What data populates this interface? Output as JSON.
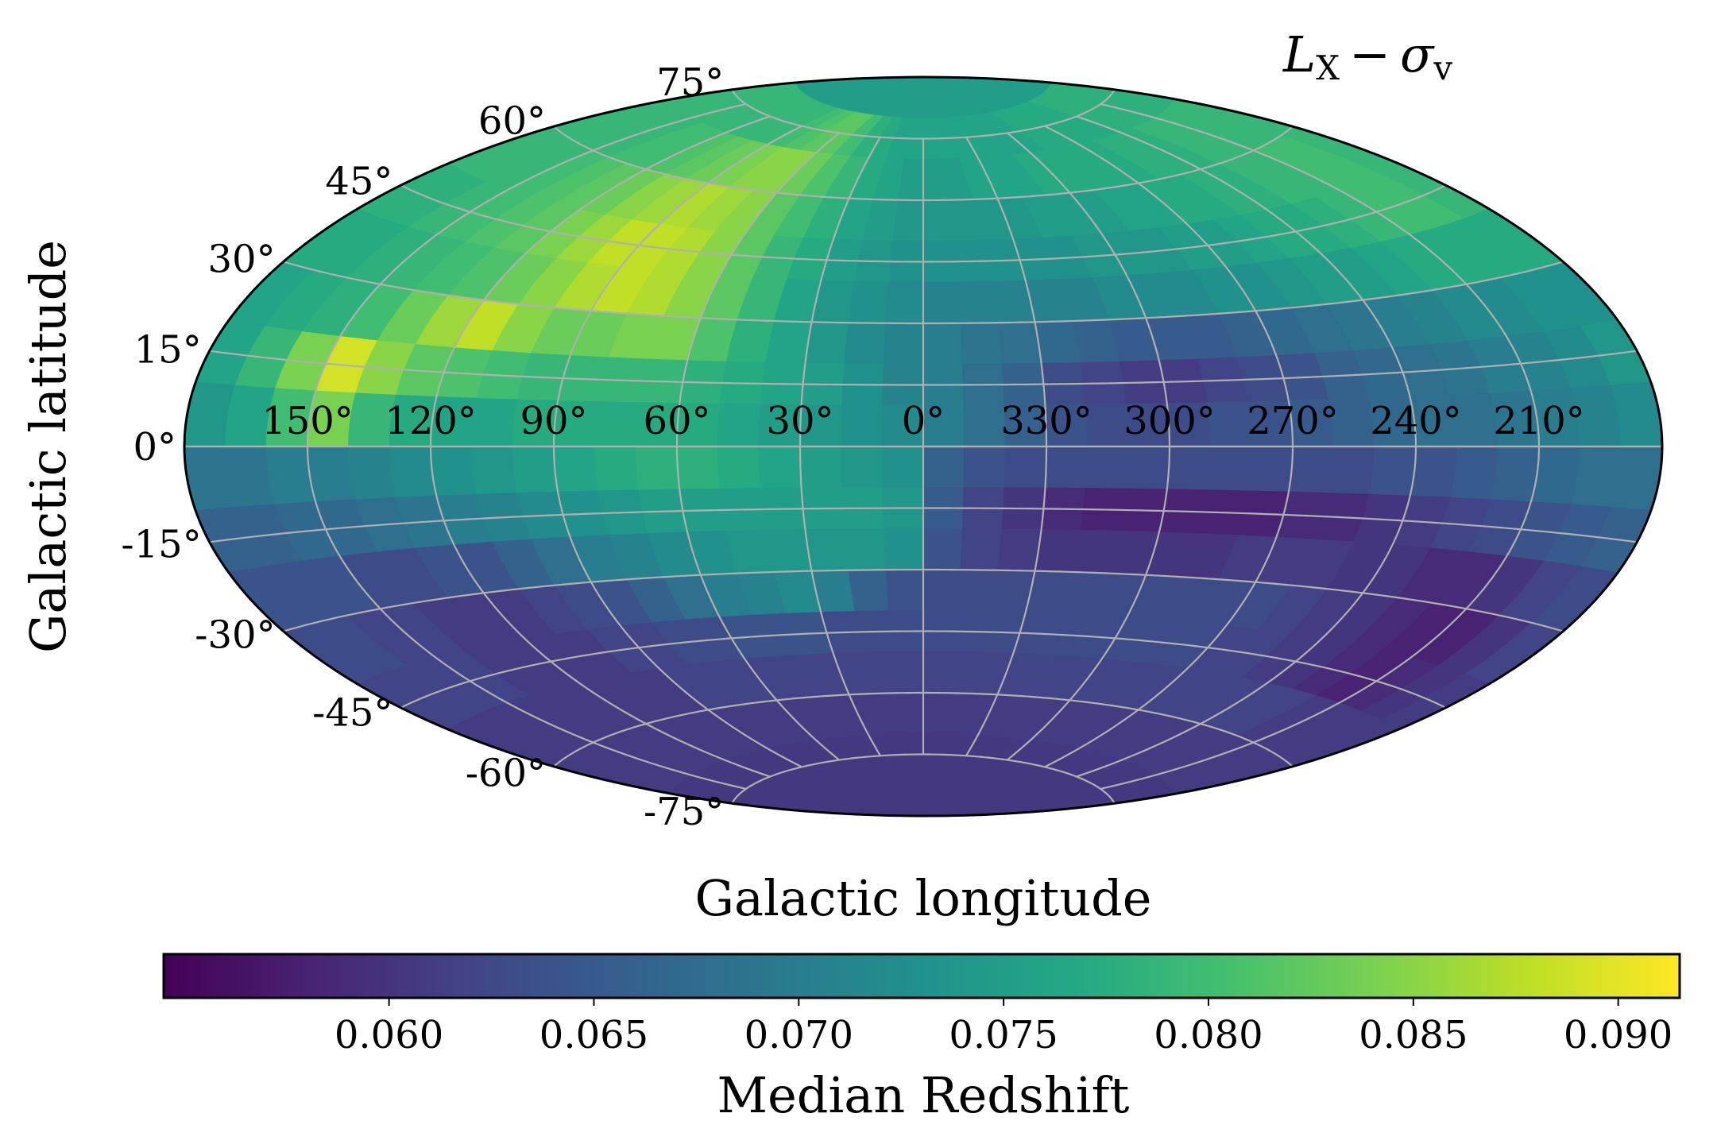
{
  "chart_data": {
    "type": "heatmap",
    "projection": "aitoff",
    "title": "L_X − σ_v",
    "title_main": "L",
    "title_sub1": "X",
    "title_op": "−",
    "title_sym": "σ",
    "title_sub2": "v",
    "xlabel": "Galactic longitude",
    "ylabel": "Galactic latitude",
    "colorbar_label": "Median Redshift",
    "colormap": "viridis",
    "clim": [
      0.0545,
      0.0915
    ],
    "colorbar_ticks": [
      0.06,
      0.065,
      0.07,
      0.075,
      0.08,
      0.085,
      0.09
    ],
    "colorbar_tick_labels": [
      "0.060",
      "0.065",
      "0.070",
      "0.075",
      "0.080",
      "0.085",
      "0.090"
    ],
    "lon_ticks": [
      150,
      120,
      90,
      60,
      30,
      0,
      -30,
      -60,
      -90,
      -120,
      -150
    ],
    "lon_tick_labels": [
      "150°",
      "120°",
      "90°",
      "60°",
      "30°",
      "0°",
      "330°",
      "300°",
      "270°",
      "240°",
      "210°"
    ],
    "lat_ticks": [
      75,
      60,
      45,
      30,
      15,
      0,
      -15,
      -30,
      -45,
      -60,
      -75
    ],
    "lat_tick_labels": [
      "75°",
      "60°",
      "45°",
      "30°",
      "15°",
      "0°",
      "-15°",
      "-30°",
      "-45°",
      "-60°",
      "-75°"
    ],
    "grid": true,
    "map_grid": {
      "lon_step_deg": 10,
      "lat_step_deg": 10,
      "lon_centers": [
        175,
        165,
        155,
        145,
        135,
        125,
        115,
        105,
        95,
        85,
        75,
        65,
        55,
        45,
        35,
        25,
        15,
        5,
        -5,
        -15,
        -25,
        -35,
        -45,
        -55,
        -65,
        -75,
        -85,
        -95,
        -105,
        -115,
        -125,
        -135,
        -145,
        -155,
        -165,
        -175
      ],
      "lat_centers": [
        85,
        75,
        65,
        55,
        45,
        35,
        25,
        15,
        5,
        -5,
        -15,
        -25,
        -35,
        -45,
        -55,
        -65,
        -75,
        -85
      ],
      "median_redshift": [
        [
          0.075,
          0.075,
          0.075,
          0.075,
          0.075,
          0.075,
          0.075,
          0.075,
          0.075,
          0.075,
          0.075,
          0.075,
          0.075,
          0.075,
          0.075,
          0.075,
          0.075,
          0.075,
          0.075,
          0.075,
          0.075,
          0.075,
          0.075,
          0.075,
          0.075,
          0.075,
          0.075,
          0.075,
          0.075,
          0.075,
          0.075,
          0.075,
          0.075,
          0.075,
          0.075,
          0.075
        ],
        [
          0.079,
          0.079,
          0.079,
          0.079,
          0.079,
          0.079,
          0.079,
          0.079,
          0.079,
          0.08,
          0.081,
          0.082,
          0.082,
          0.08,
          0.078,
          0.077,
          0.076,
          0.076,
          0.076,
          0.076,
          0.076,
          0.076,
          0.076,
          0.076,
          0.076,
          0.077,
          0.077,
          0.077,
          0.077,
          0.077,
          0.078,
          0.078,
          0.078,
          0.078,
          0.078,
          0.078
        ],
        [
          0.079,
          0.079,
          0.079,
          0.079,
          0.08,
          0.08,
          0.081,
          0.082,
          0.083,
          0.084,
          0.085,
          0.085,
          0.083,
          0.081,
          0.079,
          0.077,
          0.076,
          0.075,
          0.075,
          0.075,
          0.076,
          0.076,
          0.076,
          0.077,
          0.077,
          0.077,
          0.077,
          0.077,
          0.078,
          0.078,
          0.078,
          0.079,
          0.079,
          0.079,
          0.079,
          0.079
        ],
        [
          0.079,
          0.079,
          0.079,
          0.08,
          0.081,
          0.082,
          0.083,
          0.085,
          0.086,
          0.087,
          0.086,
          0.085,
          0.082,
          0.08,
          0.078,
          0.076,
          0.075,
          0.074,
          0.074,
          0.074,
          0.074,
          0.074,
          0.075,
          0.075,
          0.075,
          0.076,
          0.076,
          0.077,
          0.077,
          0.078,
          0.078,
          0.079,
          0.079,
          0.08,
          0.08,
          0.079
        ],
        [
          0.078,
          0.078,
          0.079,
          0.08,
          0.081,
          0.082,
          0.084,
          0.086,
          0.088,
          0.088,
          0.087,
          0.085,
          0.082,
          0.079,
          0.077,
          0.075,
          0.074,
          0.073,
          0.073,
          0.073,
          0.073,
          0.073,
          0.073,
          0.074,
          0.074,
          0.074,
          0.075,
          0.075,
          0.076,
          0.077,
          0.077,
          0.078,
          0.079,
          0.08,
          0.08,
          0.079
        ],
        [
          0.077,
          0.077,
          0.078,
          0.079,
          0.08,
          0.081,
          0.083,
          0.085,
          0.087,
          0.088,
          0.087,
          0.085,
          0.082,
          0.079,
          0.076,
          0.074,
          0.073,
          0.072,
          0.071,
          0.071,
          0.071,
          0.071,
          0.071,
          0.072,
          0.072,
          0.072,
          0.073,
          0.073,
          0.074,
          0.075,
          0.075,
          0.076,
          0.077,
          0.077,
          0.077,
          0.077
        ],
        [
          0.076,
          0.077,
          0.078,
          0.08,
          0.083,
          0.086,
          0.088,
          0.085,
          0.083,
          0.083,
          0.084,
          0.084,
          0.081,
          0.078,
          0.076,
          0.074,
          0.072,
          0.071,
          0.07,
          0.069,
          0.068,
          0.067,
          0.066,
          0.065,
          0.065,
          0.065,
          0.066,
          0.067,
          0.068,
          0.069,
          0.07,
          0.071,
          0.072,
          0.072,
          0.073,
          0.073
        ],
        [
          0.076,
          0.079,
          0.084,
          0.089,
          0.085,
          0.082,
          0.081,
          0.08,
          0.079,
          0.079,
          0.079,
          0.079,
          0.078,
          0.077,
          0.076,
          0.075,
          0.073,
          0.071,
          0.07,
          0.068,
          0.066,
          0.063,
          0.062,
          0.061,
          0.061,
          0.062,
          0.063,
          0.064,
          0.066,
          0.067,
          0.068,
          0.069,
          0.07,
          0.071,
          0.072,
          0.074
        ],
        [
          0.074,
          0.076,
          0.08,
          0.084,
          0.079,
          0.077,
          0.076,
          0.076,
          0.077,
          0.077,
          0.077,
          0.077,
          0.077,
          0.076,
          0.075,
          0.074,
          0.073,
          0.072,
          0.07,
          0.068,
          0.066,
          0.064,
          0.063,
          0.063,
          0.063,
          0.064,
          0.064,
          0.065,
          0.066,
          0.067,
          0.068,
          0.068,
          0.069,
          0.07,
          0.071,
          0.072
        ],
        [
          0.069,
          0.069,
          0.07,
          0.07,
          0.071,
          0.072,
          0.073,
          0.074,
          0.075,
          0.076,
          0.077,
          0.078,
          0.078,
          0.077,
          0.076,
          0.075,
          0.074,
          0.073,
          0.066,
          0.064,
          0.063,
          0.063,
          0.063,
          0.063,
          0.063,
          0.063,
          0.063,
          0.063,
          0.063,
          0.064,
          0.064,
          0.065,
          0.066,
          0.067,
          0.068,
          0.068
        ],
        [
          0.066,
          0.066,
          0.067,
          0.067,
          0.068,
          0.069,
          0.07,
          0.071,
          0.072,
          0.073,
          0.074,
          0.075,
          0.075,
          0.075,
          0.075,
          0.075,
          0.075,
          0.074,
          0.065,
          0.062,
          0.06,
          0.059,
          0.058,
          0.058,
          0.058,
          0.058,
          0.058,
          0.059,
          0.059,
          0.06,
          0.061,
          0.062,
          0.063,
          0.064,
          0.065,
          0.066
        ],
        [
          0.064,
          0.064,
          0.064,
          0.063,
          0.063,
          0.064,
          0.064,
          0.066,
          0.068,
          0.07,
          0.071,
          0.072,
          0.073,
          0.074,
          0.074,
          0.074,
          0.074,
          0.073,
          0.064,
          0.062,
          0.061,
          0.06,
          0.06,
          0.06,
          0.06,
          0.06,
          0.061,
          0.061,
          0.061,
          0.06,
          0.06,
          0.059,
          0.059,
          0.06,
          0.062,
          0.063
        ],
        [
          0.063,
          0.063,
          0.062,
          0.062,
          0.061,
          0.061,
          0.061,
          0.062,
          0.063,
          0.064,
          0.066,
          0.068,
          0.07,
          0.071,
          0.072,
          0.07,
          0.066,
          0.064,
          0.063,
          0.063,
          0.063,
          0.063,
          0.063,
          0.063,
          0.063,
          0.063,
          0.063,
          0.063,
          0.062,
          0.061,
          0.06,
          0.059,
          0.058,
          0.058,
          0.06,
          0.062
        ],
        [
          0.062,
          0.062,
          0.062,
          0.062,
          0.061,
          0.061,
          0.061,
          0.061,
          0.062,
          0.062,
          0.063,
          0.063,
          0.064,
          0.064,
          0.064,
          0.063,
          0.063,
          0.063,
          0.063,
          0.063,
          0.063,
          0.063,
          0.063,
          0.063,
          0.063,
          0.063,
          0.063,
          0.062,
          0.062,
          0.061,
          0.06,
          0.059,
          0.058,
          0.059,
          0.06,
          0.061
        ],
        [
          0.061,
          0.061,
          0.061,
          0.061,
          0.061,
          0.061,
          0.061,
          0.061,
          0.061,
          0.062,
          0.062,
          0.062,
          0.062,
          0.062,
          0.062,
          0.062,
          0.062,
          0.062,
          0.062,
          0.062,
          0.062,
          0.062,
          0.062,
          0.062,
          0.062,
          0.062,
          0.062,
          0.062,
          0.062,
          0.062,
          0.062,
          0.062,
          0.061,
          0.061,
          0.061,
          0.061
        ],
        [
          0.061,
          0.061,
          0.061,
          0.061,
          0.061,
          0.061,
          0.061,
          0.061,
          0.061,
          0.061,
          0.061,
          0.061,
          0.061,
          0.061,
          0.061,
          0.061,
          0.061,
          0.061,
          0.061,
          0.061,
          0.061,
          0.061,
          0.061,
          0.061,
          0.061,
          0.061,
          0.061,
          0.061,
          0.061,
          0.061,
          0.061,
          0.061,
          0.061,
          0.061,
          0.061,
          0.061
        ],
        [
          0.0605,
          0.0605,
          0.0605,
          0.0605,
          0.0605,
          0.0605,
          0.0605,
          0.0605,
          0.0605,
          0.0605,
          0.0605,
          0.0605,
          0.0605,
          0.0605,
          0.0605,
          0.0605,
          0.0605,
          0.0605,
          0.0605,
          0.0605,
          0.0605,
          0.0605,
          0.0605,
          0.0605,
          0.0605,
          0.0605,
          0.0605,
          0.0605,
          0.0605,
          0.0605,
          0.0605,
          0.0605,
          0.0605,
          0.0605,
          0.0605,
          0.0605
        ],
        [
          0.0605,
          0.0605,
          0.0605,
          0.0605,
          0.0605,
          0.0605,
          0.0605,
          0.0605,
          0.0605,
          0.0605,
          0.0605,
          0.0605,
          0.0605,
          0.0605,
          0.0605,
          0.0605,
          0.0605,
          0.0605,
          0.0605,
          0.0605,
          0.0605,
          0.0605,
          0.0605,
          0.0605,
          0.0605,
          0.0605,
          0.0605,
          0.0605,
          0.0605,
          0.0605,
          0.0605,
          0.0605,
          0.0605,
          0.0605,
          0.0605,
          0.0605
        ]
      ]
    }
  }
}
